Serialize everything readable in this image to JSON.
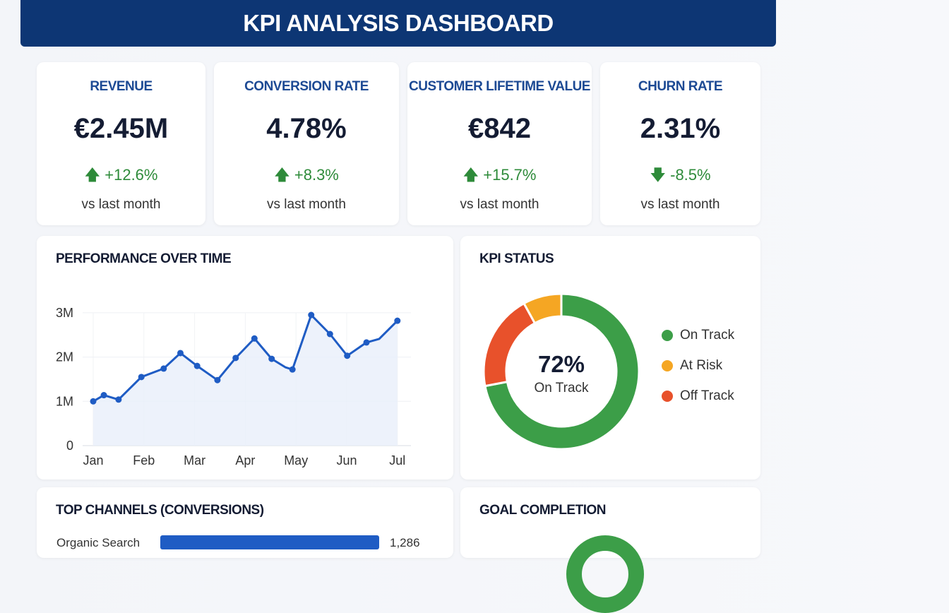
{
  "header": {
    "title": "KPI ANALYSIS DASHBOARD"
  },
  "kpis": [
    {
      "title": "REVENUE",
      "value": "€2.45M",
      "change": "+12.6%",
      "direction": "up",
      "sub": "vs last month"
    },
    {
      "title": "CONVERSION RATE",
      "value": "4.78%",
      "change": "+8.3%",
      "direction": "up",
      "sub": "vs last month"
    },
    {
      "title": "CUSTOMER LIFETIME VALUE",
      "value": "€842",
      "change": "+15.7%",
      "direction": "up",
      "sub": "vs last month"
    },
    {
      "title": "CHURN RATE",
      "value": "2.31%",
      "change": "-8.5%",
      "direction": "down",
      "sub": "vs last month"
    }
  ],
  "performance": {
    "title": "PERFORMANCE OVER TIME"
  },
  "chart_data": {
    "type": "area",
    "categories": [
      "Jan",
      "Feb",
      "Mar",
      "Apr",
      "May",
      "Jun",
      "Jul"
    ],
    "yticks": [
      "0",
      "1M",
      "2M",
      "3M"
    ],
    "ylim": [
      0,
      3000000
    ],
    "grid": true,
    "points": [
      [
        0,
        1.0
      ],
      [
        0.21,
        1.14
      ],
      [
        0.5,
        1.04
      ],
      [
        0.95,
        1.55
      ],
      [
        1.39,
        1.74
      ],
      [
        1.72,
        2.09
      ],
      [
        2.05,
        1.8
      ],
      [
        2.45,
        1.48
      ],
      [
        2.81,
        1.98
      ],
      [
        3.18,
        2.42
      ],
      [
        3.52,
        1.96
      ],
      [
        3.79,
        1.77
      ],
      [
        3.93,
        1.72
      ],
      [
        4.3,
        2.95
      ],
      [
        4.67,
        2.52
      ],
      [
        5.01,
        2.03
      ],
      [
        5.39,
        2.33
      ],
      [
        5.64,
        2.41
      ],
      [
        6.0,
        2.82
      ]
    ],
    "point_units": "x: month index from Jan; y: millions",
    "color": "#1f5cc4"
  },
  "status": {
    "title": "KPI STATUS",
    "center_value": "72%",
    "center_label": "On Track",
    "segments": [
      {
        "label": "On Track",
        "percent": 72,
        "color": "#3c9e48"
      },
      {
        "label": "At Risk",
        "percent": 8,
        "color": "#f5a623"
      },
      {
        "label": "Off Track",
        "percent": 20,
        "color": "#e8512b"
      }
    ]
  },
  "channels": {
    "title": "TOP CHANNELS (CONVERSIONS)",
    "items": [
      {
        "label": "Organic Search",
        "value": "1,286"
      }
    ]
  },
  "goal": {
    "title": "GOAL COMPLETION"
  }
}
